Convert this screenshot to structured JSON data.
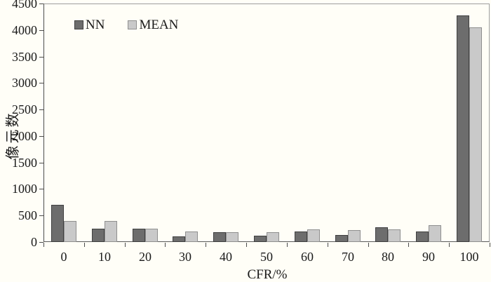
{
  "figure": {
    "background": "#fffef7",
    "axis_color": "#4d4d4d",
    "frame_color": "#9e9e9e",
    "text_color": "#1a1a1a"
  },
  "chart_data": {
    "type": "bar",
    "title": "",
    "xlabel": "CFR/%",
    "ylabel": "像元数",
    "categories": [
      "0",
      "10",
      "20",
      "30",
      "40",
      "50",
      "60",
      "70",
      "80",
      "90",
      "100"
    ],
    "series": [
      {
        "name": "NN",
        "color": "#6d6d6d",
        "border_color": "#3f3f3f",
        "values": [
          700,
          250,
          250,
          105,
          180,
          120,
          205,
          130,
          280,
          205,
          4270
        ]
      },
      {
        "name": "MEAN",
        "color": "#c9c9c9",
        "border_color": "#8f8f8f",
        "values": [
          395,
          395,
          250,
          200,
          180,
          180,
          235,
          225,
          240,
          320,
          4055
        ]
      }
    ],
    "ylim": [
      0,
      4500
    ],
    "ytick_step": 500,
    "yticks": [
      "0",
      "500",
      "1000",
      "1500",
      "2000",
      "2500",
      "3000",
      "3500",
      "4000",
      "4500"
    ],
    "grid": false,
    "legend_position": "top-left-inside"
  }
}
